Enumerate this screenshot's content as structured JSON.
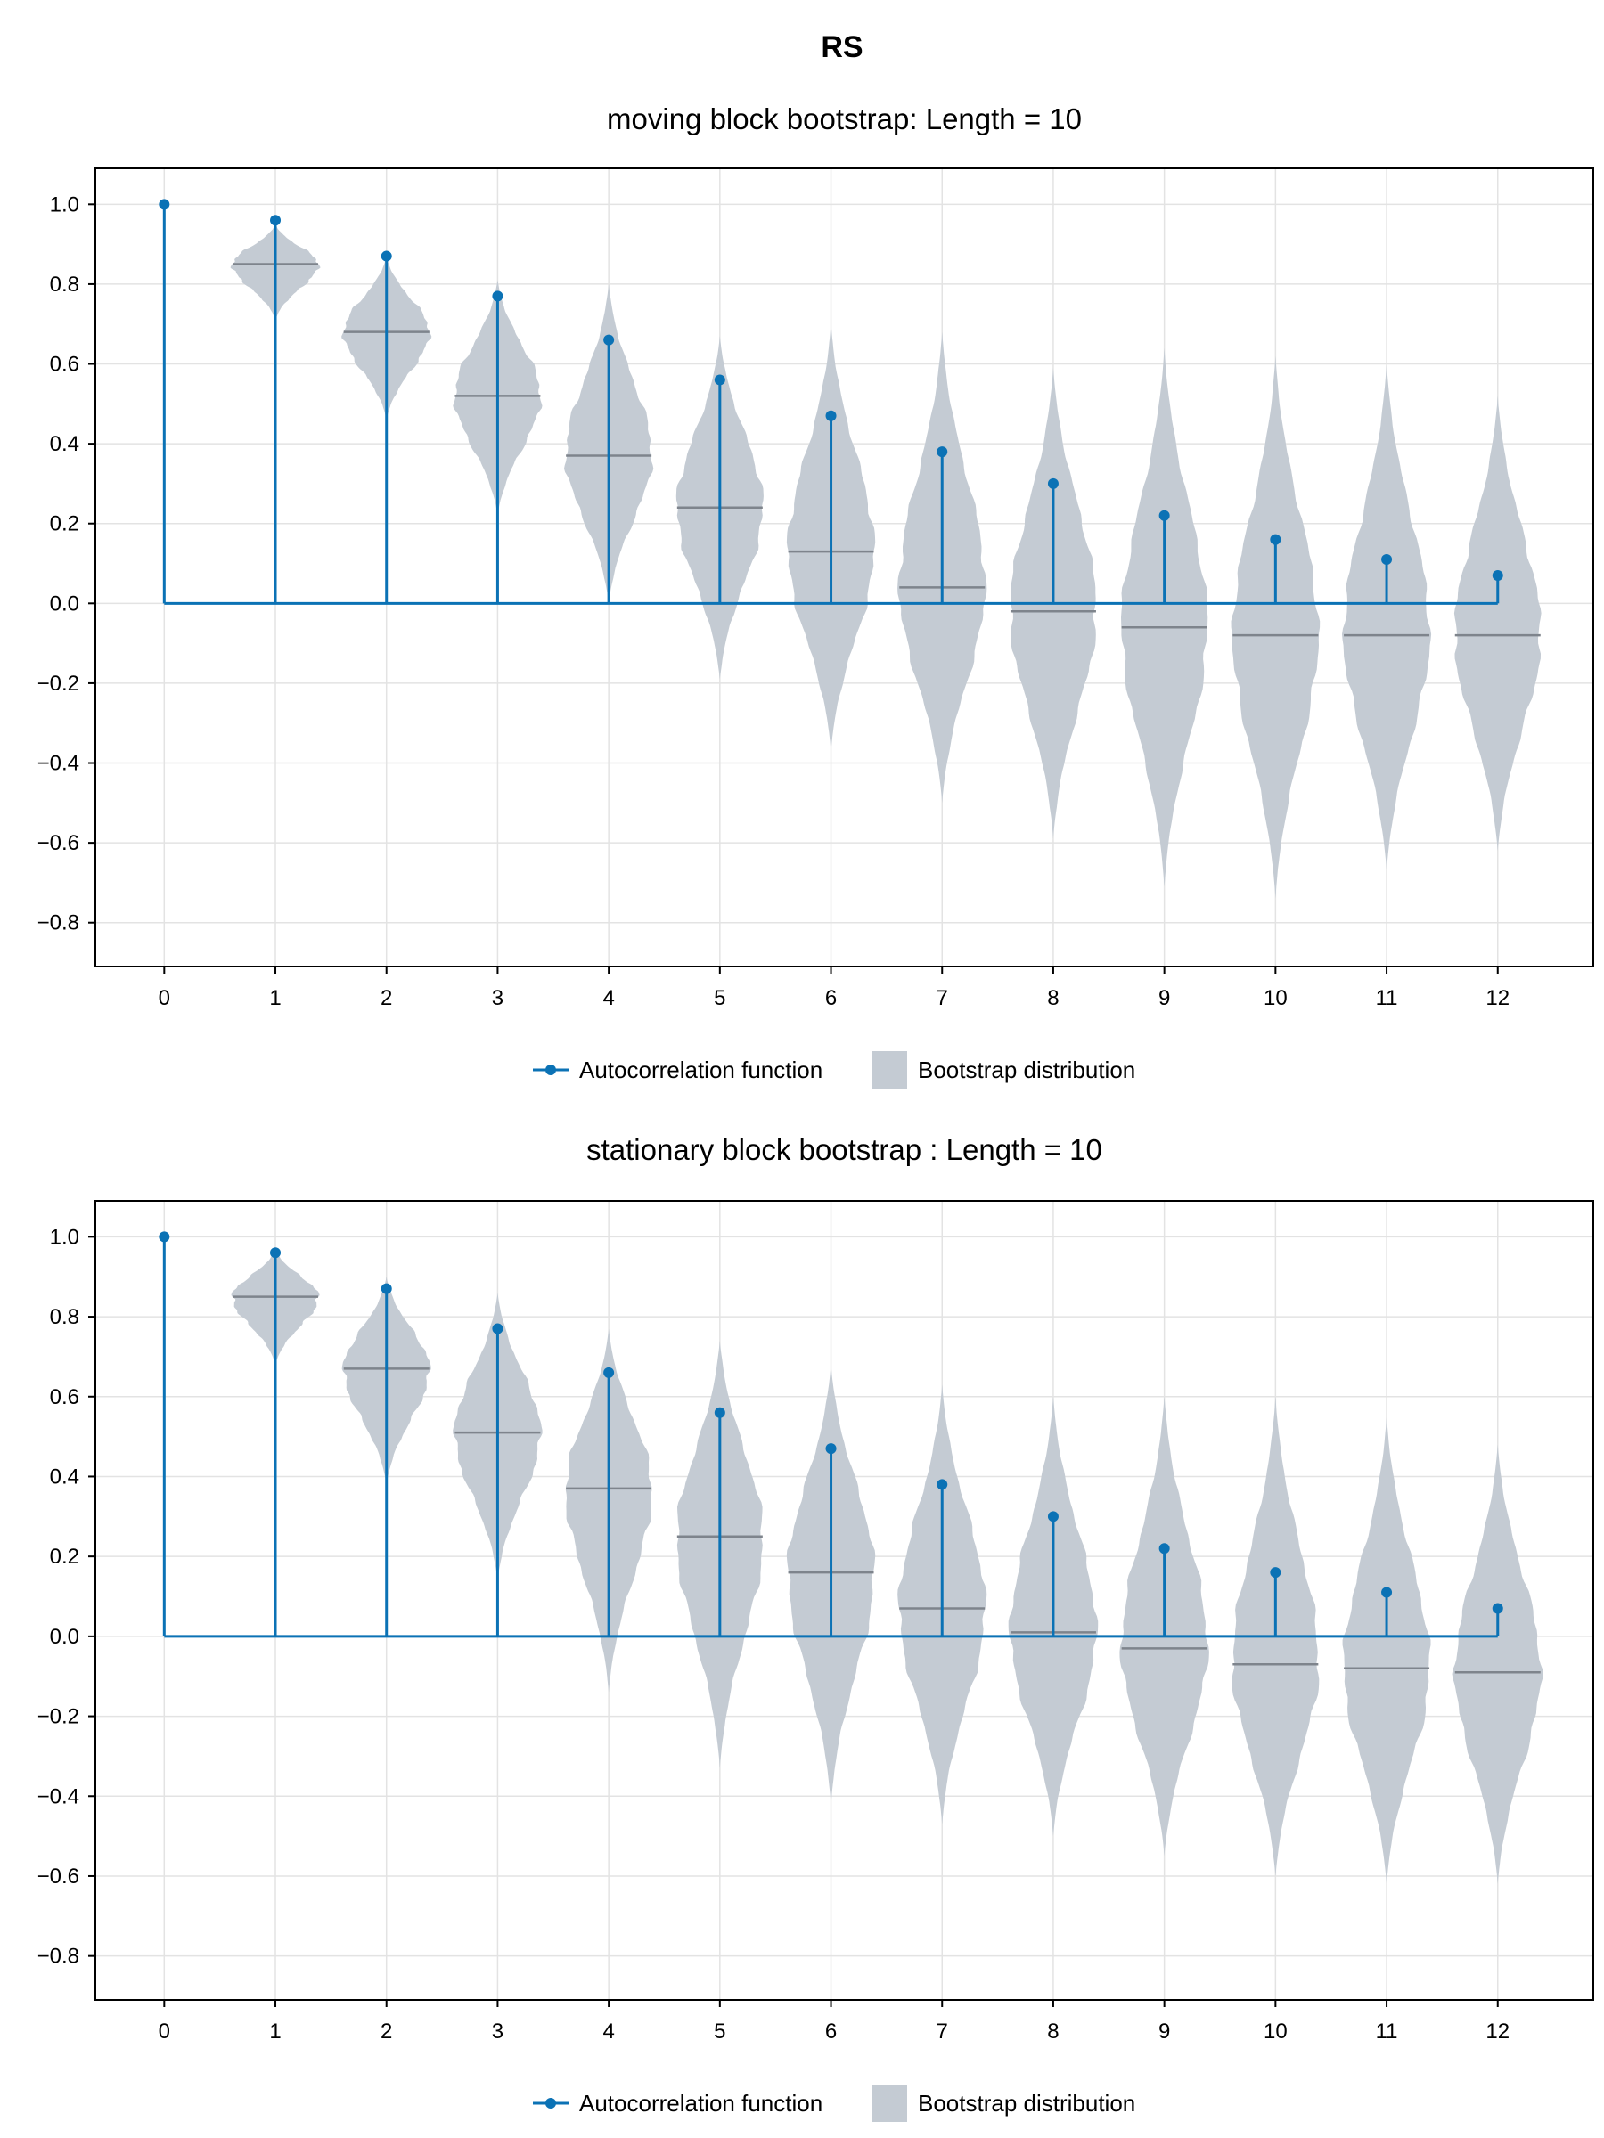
{
  "figure_title": "RS",
  "colors": {
    "acf": "#0b72b5",
    "violin_fill": "#c4cbd3",
    "median_line": "#7e848c",
    "grid": "#e3e3e3",
    "frame": "#000000"
  },
  "legend": {
    "acf_label": "Autocorrelation function",
    "bootstrap_label": "Bootstrap distribution"
  },
  "chart_data": [
    {
      "type": "violin+stem",
      "title": "moving block bootstrap: Length = 10",
      "xlabel": "",
      "ylabel": "",
      "x_ticks": [
        0,
        1,
        2,
        3,
        4,
        5,
        6,
        7,
        8,
        9,
        10,
        11,
        12
      ],
      "y_ticks": [
        1.0,
        0.8,
        0.6,
        0.4,
        0.2,
        0.0,
        -0.2,
        -0.4,
        -0.6,
        -0.8
      ],
      "xlim": [
        -0.62,
        12.86
      ],
      "ylim": [
        -0.91,
        1.09
      ],
      "grid": true,
      "legend_position": "bottom-center",
      "acf": {
        "lags": [
          0,
          1,
          2,
          3,
          4,
          5,
          6,
          7,
          8,
          9,
          10,
          11,
          12
        ],
        "values": [
          1.0,
          0.96,
          0.87,
          0.77,
          0.66,
          0.56,
          0.47,
          0.38,
          0.3,
          0.22,
          0.16,
          0.11,
          0.07
        ]
      },
      "bootstrap": {
        "lags": [
          1,
          2,
          3,
          4,
          5,
          6,
          7,
          8,
          9,
          10,
          11,
          12
        ],
        "median": [
          0.85,
          0.68,
          0.52,
          0.37,
          0.24,
          0.13,
          0.04,
          -0.02,
          -0.06,
          -0.08,
          -0.08,
          -0.08
        ],
        "min": [
          0.71,
          0.46,
          0.22,
          0.0,
          -0.19,
          -0.37,
          -0.5,
          -0.59,
          -0.71,
          -0.74,
          -0.67,
          -0.62
        ],
        "max": [
          0.95,
          0.87,
          0.81,
          0.8,
          0.67,
          0.7,
          0.68,
          0.59,
          0.64,
          0.62,
          0.6,
          0.52
        ]
      }
    },
    {
      "type": "violin+stem",
      "title": "stationary block bootstrap : Length = 10",
      "xlabel": "",
      "ylabel": "",
      "x_ticks": [
        0,
        1,
        2,
        3,
        4,
        5,
        6,
        7,
        8,
        9,
        10,
        11,
        12
      ],
      "y_ticks": [
        1.0,
        0.8,
        0.6,
        0.4,
        0.2,
        0.0,
        -0.2,
        -0.4,
        -0.6,
        -0.8
      ],
      "xlim": [
        -0.62,
        12.86
      ],
      "ylim": [
        -0.91,
        1.09
      ],
      "grid": true,
      "legend_position": "bottom-center",
      "acf": {
        "lags": [
          0,
          1,
          2,
          3,
          4,
          5,
          6,
          7,
          8,
          9,
          10,
          11,
          12
        ],
        "values": [
          1.0,
          0.96,
          0.87,
          0.77,
          0.66,
          0.56,
          0.47,
          0.38,
          0.3,
          0.22,
          0.16,
          0.11,
          0.07
        ]
      },
      "bootstrap": {
        "lags": [
          1,
          2,
          3,
          4,
          5,
          6,
          7,
          8,
          9,
          10,
          11,
          12
        ],
        "median": [
          0.85,
          0.67,
          0.51,
          0.37,
          0.25,
          0.16,
          0.07,
          0.01,
          -0.03,
          -0.07,
          -0.08,
          -0.09
        ],
        "min": [
          0.68,
          0.38,
          0.14,
          -0.14,
          -0.33,
          -0.42,
          -0.47,
          -0.5,
          -0.55,
          -0.6,
          -0.62,
          -0.62
        ],
        "max": [
          0.97,
          0.9,
          0.86,
          0.77,
          0.74,
          0.68,
          0.63,
          0.6,
          0.6,
          0.6,
          0.55,
          0.48
        ]
      }
    }
  ]
}
